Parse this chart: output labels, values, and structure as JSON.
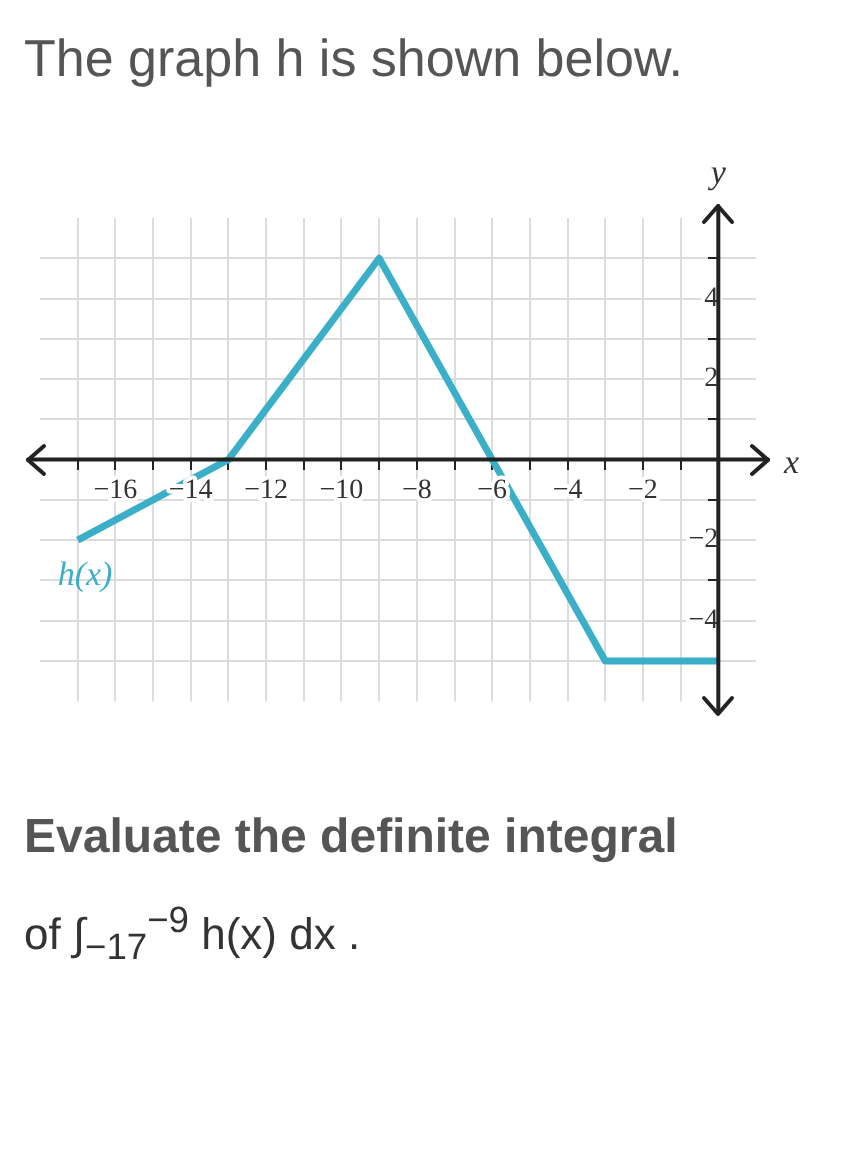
{
  "chart_data": {
    "type": "line",
    "title": "The graph h is shown below.",
    "xlabel": "x",
    "ylabel": "y",
    "series": [
      {
        "name": "h(x)",
        "color": "#3bafc8",
        "x": [
          -17,
          -13,
          -9,
          -6,
          -3,
          0
        ],
        "values": [
          -2,
          0,
          5,
          0,
          -5,
          -5
        ]
      }
    ],
    "xlim": [
      -18,
      1
    ],
    "ylim": [
      -6,
      6
    ],
    "xticks": [
      {
        "value": -17,
        "label": null
      },
      {
        "value": -16,
        "label": "−16"
      },
      {
        "value": -15,
        "label": null
      },
      {
        "value": -14,
        "label": "−14"
      },
      {
        "value": -13,
        "label": null
      },
      {
        "value": -12,
        "label": "−12"
      },
      {
        "value": -11,
        "label": null
      },
      {
        "value": -10,
        "label": "−10"
      },
      {
        "value": -9,
        "label": null
      },
      {
        "value": -8,
        "label": "−8"
      },
      {
        "value": -7,
        "label": null
      },
      {
        "value": -6,
        "label": "−6"
      },
      {
        "value": -5,
        "label": null
      },
      {
        "value": -4,
        "label": "−4"
      },
      {
        "value": -3,
        "label": null
      },
      {
        "value": -2,
        "label": "−2"
      },
      {
        "value": -1,
        "label": null
      }
    ],
    "yticks": [
      {
        "value": -5,
        "label": null
      },
      {
        "value": -4,
        "label": "−4"
      },
      {
        "value": -3,
        "label": null
      },
      {
        "value": -2,
        "label": "−2"
      },
      {
        "value": -1,
        "label": null
      },
      {
        "value": 1,
        "label": null
      },
      {
        "value": 2,
        "label": "2"
      },
      {
        "value": 3,
        "label": null
      },
      {
        "value": 4,
        "label": "4"
      },
      {
        "value": 5,
        "label": null
      }
    ],
    "grid": true,
    "legend": false,
    "marker": "none",
    "line_style": "solid",
    "annotations": [
      "Evaluate the definite integral",
      "of ∫$_{−17}$$^{−9}$ h(x) dx ."
    ]
  }
}
